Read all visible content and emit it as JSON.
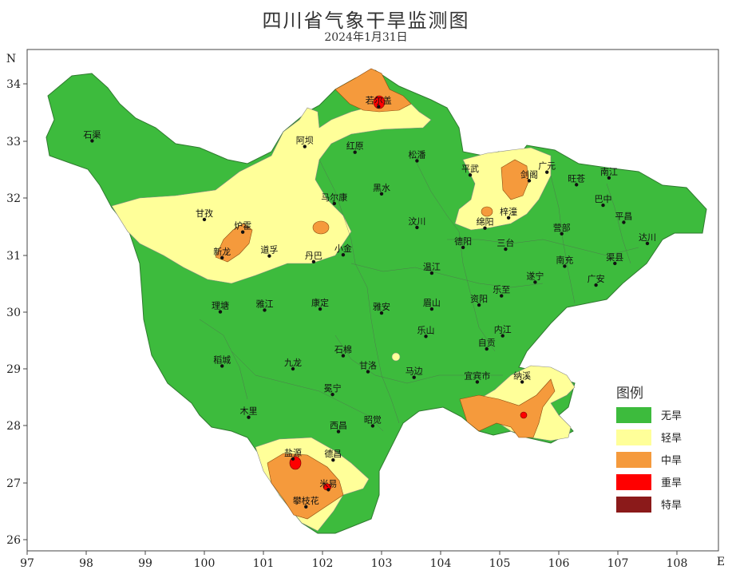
{
  "title": "四川省气象干旱监测图",
  "subtitle": "2024年1月31日",
  "axis": {
    "north_label": "N",
    "east_label": "E",
    "lon_ticks": [
      "97",
      "98",
      "99",
      "100",
      "101",
      "102",
      "103",
      "104",
      "105",
      "106",
      "107",
      "108"
    ],
    "lat_ticks": [
      "34",
      "33",
      "32",
      "31",
      "30",
      "29",
      "28",
      "27",
      "26"
    ]
  },
  "legend": {
    "title": "图例",
    "items": [
      {
        "label": "无旱",
        "color": "#3dbb3d"
      },
      {
        "label": "轻旱",
        "color": "#ffff99"
      },
      {
        "label": "中旱",
        "color": "#f59a3c"
      },
      {
        "label": "重旱",
        "color": "#ff0000"
      },
      {
        "label": "特旱",
        "color": "#8b1a1a"
      }
    ]
  },
  "cities": [
    {
      "name": "石渠",
      "lon": 98.1,
      "lat": 33.0
    },
    {
      "name": "若尔盖",
      "lon": 102.95,
      "lat": 33.6
    },
    {
      "name": "阿坝",
      "lon": 101.7,
      "lat": 32.9
    },
    {
      "name": "红原",
      "lon": 102.55,
      "lat": 32.8
    },
    {
      "name": "松潘",
      "lon": 103.6,
      "lat": 32.65
    },
    {
      "name": "平武",
      "lon": 104.5,
      "lat": 32.4
    },
    {
      "name": "广元",
      "lon": 105.8,
      "lat": 32.45
    },
    {
      "name": "旺苍",
      "lon": 106.3,
      "lat": 32.23
    },
    {
      "name": "南江",
      "lon": 106.85,
      "lat": 32.35
    },
    {
      "name": "马尔康",
      "lon": 102.2,
      "lat": 31.9
    },
    {
      "name": "黑水",
      "lon": 103.0,
      "lat": 32.07
    },
    {
      "name": "剑阁",
      "lon": 105.5,
      "lat": 32.3
    },
    {
      "name": "巴中",
      "lon": 106.75,
      "lat": 31.87
    },
    {
      "name": "甘孜",
      "lon": 100.0,
      "lat": 31.62
    },
    {
      "name": "炉霍",
      "lon": 100.65,
      "lat": 31.4
    },
    {
      "name": "梓潼",
      "lon": 105.15,
      "lat": 31.65
    },
    {
      "name": "绵阳",
      "lon": 104.75,
      "lat": 31.47
    },
    {
      "name": "平昌",
      "lon": 107.1,
      "lat": 31.57
    },
    {
      "name": "汶川",
      "lon": 103.6,
      "lat": 31.48
    },
    {
      "name": "营部",
      "lon": 106.05,
      "lat": 31.37
    },
    {
      "name": "达川",
      "lon": 107.5,
      "lat": 31.2
    },
    {
      "name": "新龙",
      "lon": 100.3,
      "lat": 30.95
    },
    {
      "name": "道孚",
      "lon": 101.1,
      "lat": 30.98
    },
    {
      "name": "丹巴",
      "lon": 101.85,
      "lat": 30.88
    },
    {
      "name": "小金",
      "lon": 102.35,
      "lat": 31.0
    },
    {
      "name": "德阳",
      "lon": 104.38,
      "lat": 31.13
    },
    {
      "name": "三台",
      "lon": 105.1,
      "lat": 31.1
    },
    {
      "name": "南充",
      "lon": 106.1,
      "lat": 30.8
    },
    {
      "name": "渠县",
      "lon": 106.95,
      "lat": 30.85
    },
    {
      "name": "温江",
      "lon": 103.85,
      "lat": 30.68
    },
    {
      "name": "遂宁",
      "lon": 105.6,
      "lat": 30.52
    },
    {
      "name": "广安",
      "lon": 106.63,
      "lat": 30.47
    },
    {
      "name": "理塘",
      "lon": 100.27,
      "lat": 30.0
    },
    {
      "name": "雅江",
      "lon": 101.02,
      "lat": 30.03
    },
    {
      "name": "康定",
      "lon": 101.96,
      "lat": 30.05
    },
    {
      "name": "雅安",
      "lon": 103.0,
      "lat": 29.98
    },
    {
      "name": "眉山",
      "lon": 103.85,
      "lat": 30.05
    },
    {
      "name": "资阳",
      "lon": 104.65,
      "lat": 30.12
    },
    {
      "name": "乐至",
      "lon": 105.03,
      "lat": 30.28
    },
    {
      "name": "内江",
      "lon": 105.05,
      "lat": 29.58
    },
    {
      "name": "乐山",
      "lon": 103.75,
      "lat": 29.57
    },
    {
      "name": "石棉",
      "lon": 102.35,
      "lat": 29.23
    },
    {
      "name": "自贡",
      "lon": 104.78,
      "lat": 29.35
    },
    {
      "name": "稻城",
      "lon": 100.3,
      "lat": 29.05
    },
    {
      "name": "九龙",
      "lon": 101.5,
      "lat": 29.0
    },
    {
      "name": "甘洛",
      "lon": 102.77,
      "lat": 28.95
    },
    {
      "name": "马边",
      "lon": 103.55,
      "lat": 28.85
    },
    {
      "name": "宜宾市",
      "lon": 104.62,
      "lat": 28.77
    },
    {
      "name": "纳溪",
      "lon": 105.38,
      "lat": 28.77
    },
    {
      "name": "冕宁",
      "lon": 102.17,
      "lat": 28.55
    },
    {
      "name": "木里",
      "lon": 100.75,
      "lat": 28.15
    },
    {
      "name": "西昌",
      "lon": 102.27,
      "lat": 27.9
    },
    {
      "name": "昭觉",
      "lon": 102.85,
      "lat": 28.0
    },
    {
      "name": "盐源",
      "lon": 101.5,
      "lat": 27.42
    },
    {
      "name": "德昌",
      "lon": 102.18,
      "lat": 27.4
    },
    {
      "name": "米易",
      "lon": 102.1,
      "lat": 26.88
    },
    {
      "name": "攀枝花",
      "lon": 101.72,
      "lat": 26.58
    }
  ]
}
